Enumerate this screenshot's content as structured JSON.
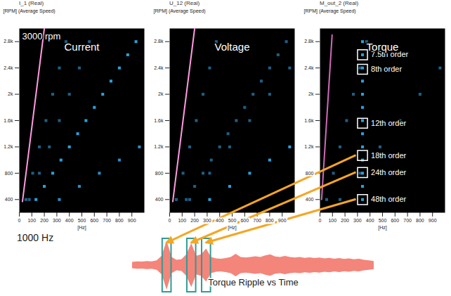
{
  "chart_data": [
    {
      "type": "line",
      "title": "Current",
      "subtitle": "I_1 (Real)",
      "xlabel": "[Hz]",
      "ylabel": "[RPM] (Average Speed)",
      "xlim": [
        0,
        1000
      ],
      "ylim": [
        200,
        3000
      ],
      "xticks": [
        0,
        100,
        200,
        300,
        400,
        500,
        600,
        700,
        800,
        900
      ],
      "yticks": [
        400,
        800,
        {
          "value": 1200,
          "label": "1.2k"
        },
        {
          "value": 1600,
          "label": "1.6k"
        },
        {
          "value": 2000,
          "label": "2k"
        },
        {
          "value": 2400,
          "label": "2.4k"
        },
        {
          "value": 2800,
          "label": "2.8k"
        }
      ],
      "annotations": [
        {
          "text": "3000 rpm"
        }
      ],
      "series": [
        {
          "color": "#ff9ae0",
          "line_style": "solid",
          "x": [
            25,
            200
          ],
          "values": [
            370,
            3000
          ]
        },
        {
          "color": "#2b9fd8",
          "marker": "square",
          "x": [
            133,
            200,
            267,
            333,
            400,
            467,
            533,
            600,
            667,
            733,
            800,
            867,
            933
          ],
          "values": [
            400,
            600,
            800,
            1000,
            1200,
            1400,
            1600,
            1800,
            2000,
            2200,
            2400,
            2600,
            2800
          ]
        },
        {
          "color": "#2b8cc4",
          "marker": "square",
          "x": [
            320,
            480,
            640,
            800,
            960
          ],
          "values": [
            400,
            600,
            800,
            1000,
            1200
          ]
        },
        {
          "color": "#1d5f85",
          "marker": "square",
          "x": [
            80,
            160,
            240,
            320,
            400,
            480,
            560
          ],
          "values": [
            400,
            800,
            1200,
            1600,
            2000,
            2400,
            2800
          ]
        },
        {
          "color": "#1d5f85",
          "marker": "square",
          "x": [
            53,
            107,
            160,
            213,
            267,
            320,
            373
          ],
          "values": [
            400,
            800,
            1200,
            1600,
            2000,
            2400,
            2800
          ]
        }
      ]
    },
    {
      "type": "line",
      "title": "Voltage",
      "subtitle": "U_12 (Real)",
      "xlabel": "[Hz]",
      "ylabel": "[RPM] (Average Speed)",
      "xlim": [
        0,
        1000
      ],
      "ylim": [
        200,
        3000
      ],
      "xticks": [
        0,
        100,
        200,
        300,
        400,
        500,
        600,
        700,
        800,
        900
      ],
      "yticks": [
        400,
        800,
        {
          "value": 1200,
          "label": "1.2k"
        },
        {
          "value": 1600,
          "label": "1.6k"
        },
        {
          "value": 2000,
          "label": "2k"
        },
        {
          "value": 2400,
          "label": "2.4k"
        },
        {
          "value": 2800,
          "label": "2.8k"
        }
      ],
      "series": [
        {
          "color": "#ff9ae0",
          "line_style": "solid",
          "x": [
            25,
            200
          ],
          "values": [
            370,
            3000
          ]
        },
        {
          "color": "#1d5f85",
          "marker": "square",
          "x": [
            133,
            200,
            267,
            333,
            400,
            467,
            533,
            600,
            667,
            733,
            800,
            867,
            933
          ],
          "values": [
            400,
            600,
            800,
            1000,
            1200,
            1400,
            1600,
            1800,
            2000,
            2200,
            2400,
            2600,
            2800
          ]
        },
        {
          "color": "#2b9fd8",
          "marker": "square",
          "x": [
            320,
            480,
            640,
            800,
            960
          ],
          "values": [
            400,
            600,
            800,
            1000,
            1200
          ]
        },
        {
          "color": "#1d5f85",
          "marker": "square",
          "x": [
            160,
            320,
            480,
            640,
            800,
            960
          ],
          "values": [
            400,
            800,
            1200,
            1600,
            2000,
            2400
          ]
        },
        {
          "color": "#1d5f85",
          "marker": "square",
          "x": [
            53,
            107,
            160,
            213,
            267,
            320,
            373
          ],
          "values": [
            400,
            800,
            1200,
            1600,
            2000,
            2400,
            2800
          ]
        }
      ]
    },
    {
      "type": "line",
      "title": "Torque",
      "subtitle": "M_out_2 (Real)",
      "xlabel": "[Hz]",
      "ylabel": "[RPM] (Average Speed)",
      "xlim": [
        0,
        1000
      ],
      "ylim": [
        200,
        3000
      ],
      "xticks": [
        0,
        100,
        200,
        300,
        400,
        500,
        600,
        700,
        800,
        900
      ],
      "yticks": [
        400,
        800,
        {
          "value": 1200,
          "label": "1.2k"
        },
        {
          "value": 1600,
          "label": "1.6k"
        },
        {
          "value": 2000,
          "label": "2k"
        },
        {
          "value": 2400,
          "label": "2.4k"
        },
        {
          "value": 2800,
          "label": "2.8k"
        }
      ],
      "annotations": [
        {
          "text": "7.5th order",
          "x": 340,
          "y": 2600
        },
        {
          "text": "8th order",
          "x": 340,
          "y": 2380
        },
        {
          "text": "12th order",
          "x": 340,
          "y": 1560
        },
        {
          "text": "18th order",
          "x": 340,
          "y": 1070
        },
        {
          "text": "24th order",
          "x": 340,
          "y": 810
        },
        {
          "text": "48th order",
          "x": 340,
          "y": 400
        }
      ],
      "series": [
        {
          "color": "#d06ab8",
          "line_style": "solid",
          "x": [
            13,
            97
          ],
          "values": [
            400,
            2900
          ]
        },
        {
          "color": "#1d5f85",
          "marker": "square",
          "x": [
            53,
            107,
            160,
            213,
            267,
            320,
            373
          ],
          "values": [
            400,
            800,
            1200,
            1600,
            2000,
            2400,
            2800
          ]
        },
        {
          "color": "#1d5f85",
          "marker": "square",
          "x": [
            160,
            320,
            480,
            640,
            800,
            960
          ],
          "values": [
            400,
            800,
            1200,
            1600,
            2000,
            2400
          ]
        },
        {
          "color": "#2b9fd8",
          "marker": "square",
          "x": [
            340,
            340,
            340,
            340,
            340,
            340,
            340,
            340,
            340,
            340,
            340,
            340,
            340
          ],
          "values": [
            400,
            600,
            800,
            1000,
            1200,
            1400,
            1600,
            1800,
            2000,
            2200,
            2400,
            2600,
            2800
          ]
        }
      ]
    },
    {
      "type": "area",
      "title": "Torque Ripple vs Time",
      "color": "#f4857a",
      "xlim": [
        0,
        49
      ],
      "ylim": [
        -1,
        1
      ],
      "tick_labels": false,
      "x": [
        0,
        1,
        2,
        3,
        4,
        5,
        6,
        7,
        8,
        9,
        10,
        11,
        12,
        13,
        14,
        15,
        16,
        17,
        18,
        19,
        20,
        21,
        22,
        23,
        24,
        25,
        26,
        27,
        28,
        29,
        30,
        31,
        32,
        33,
        34,
        35,
        36,
        37,
        38,
        39,
        40,
        41,
        42,
        43,
        44,
        45,
        46,
        47,
        48,
        49
      ],
      "values": [
        0.12,
        0.14,
        0.13,
        0.15,
        0.14,
        0.18,
        0.35,
        0.92,
        0.3,
        0.2,
        0.22,
        0.4,
        0.82,
        0.35,
        0.4,
        0.62,
        0.3,
        0.25,
        0.24,
        0.26,
        0.3,
        0.42,
        0.3,
        0.28,
        0.3,
        0.33,
        0.3,
        0.36,
        0.4,
        0.32,
        0.3,
        0.34,
        0.3,
        0.28,
        0.3,
        0.27,
        0.29,
        0.26,
        0.28,
        0.25,
        0.27,
        0.24,
        0.26,
        0.23,
        0.25,
        0.22,
        0.24,
        0.2,
        0.18,
        0.15
      ],
      "highlights": [
        {
          "x": 7,
          "arrow_from": "18th order"
        },
        {
          "x": 12,
          "arrow_from": "24th order"
        },
        {
          "x": 15,
          "arrow_from": "48th order"
        }
      ]
    }
  ],
  "annotations": [
    {
      "text": "1000 Hz"
    }
  ]
}
